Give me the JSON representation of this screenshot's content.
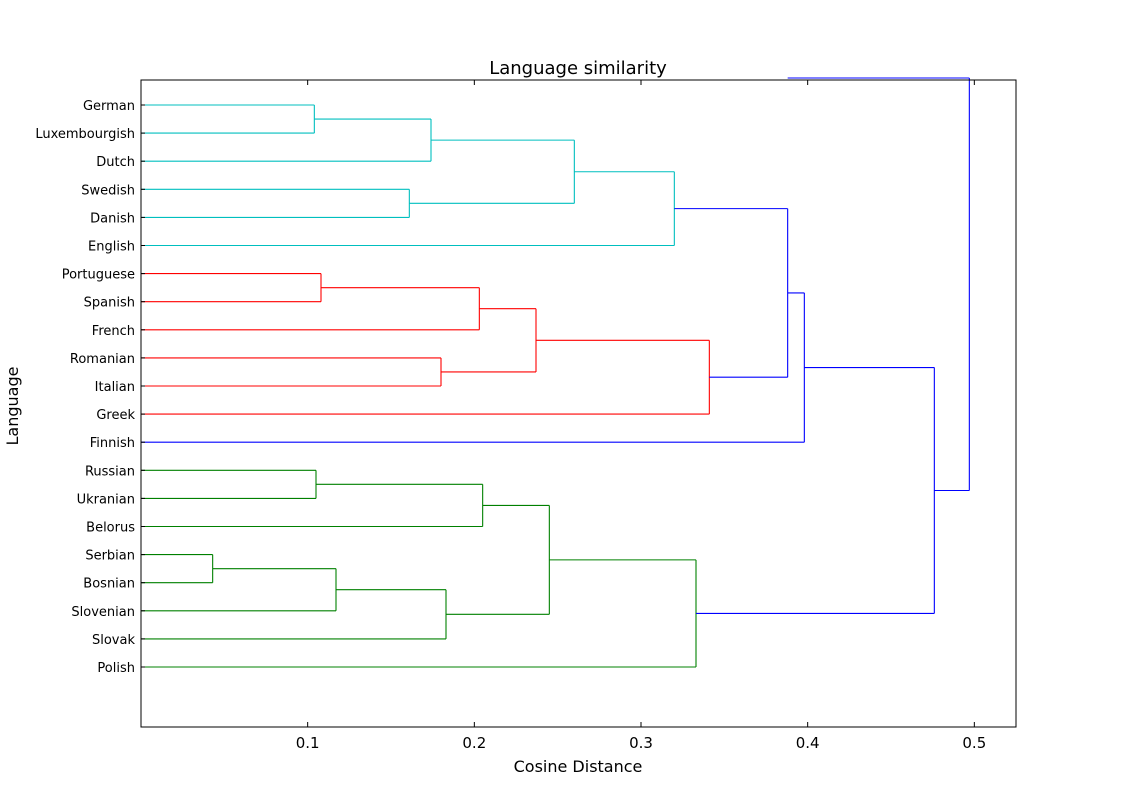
{
  "chart_data": {
    "type": "dendrogram",
    "orientation": "horizontal",
    "title": "Language similarity",
    "xlabel": "Cosine Distance",
    "ylabel": "Language",
    "xlim": [
      0.0,
      0.525
    ],
    "xticks": [
      0.1,
      0.2,
      0.3,
      0.4,
      0.5
    ],
    "xtick_labels": [
      "0.1",
      "0.2",
      "0.3",
      "0.4",
      "0.5"
    ],
    "grid": false,
    "colors": {
      "germanic_cluster": "#00bfbf",
      "romance_cluster": "#ff0000",
      "slavic_cluster": "#008000",
      "above_threshold": "#0000ff",
      "axes": "#000000"
    },
    "leaves": [
      "German",
      "Luxembourgish",
      "Dutch",
      "Swedish",
      "Danish",
      "English",
      "Portuguese",
      "Spanish",
      "French",
      "Romanian",
      "Italian",
      "Greek",
      "Finnish",
      "Russian",
      "Ukranian",
      "Belorus",
      "Serbian",
      "Bosnian",
      "Slovenian",
      "Slovak",
      "Polish"
    ],
    "merges": [
      {
        "id": "g1",
        "children": [
          "German",
          "Luxembourgish"
        ],
        "distance": 0.104,
        "color": "germanic_cluster"
      },
      {
        "id": "g2",
        "children": [
          "g1",
          "Dutch"
        ],
        "distance": 0.174,
        "color": "germanic_cluster"
      },
      {
        "id": "g3",
        "children": [
          "Swedish",
          "Danish"
        ],
        "distance": 0.161,
        "color": "germanic_cluster"
      },
      {
        "id": "g4",
        "children": [
          "g2",
          "g3"
        ],
        "distance": 0.26,
        "color": "germanic_cluster"
      },
      {
        "id": "g5",
        "children": [
          "g4",
          "English"
        ],
        "distance": 0.32,
        "color": "germanic_cluster"
      },
      {
        "id": "r1",
        "children": [
          "Portuguese",
          "Spanish"
        ],
        "distance": 0.108,
        "color": "romance_cluster"
      },
      {
        "id": "r2",
        "children": [
          "r1",
          "French"
        ],
        "distance": 0.203,
        "color": "romance_cluster"
      },
      {
        "id": "r3",
        "children": [
          "Romanian",
          "Italian"
        ],
        "distance": 0.18,
        "color": "romance_cluster"
      },
      {
        "id": "r4",
        "children": [
          "r2",
          "r3"
        ],
        "distance": 0.237,
        "color": "romance_cluster"
      },
      {
        "id": "r5",
        "children": [
          "r4",
          "Greek"
        ],
        "distance": 0.341,
        "color": "romance_cluster"
      },
      {
        "id": "s1",
        "children": [
          "Russian",
          "Ukranian"
        ],
        "distance": 0.105,
        "color": "slavic_cluster"
      },
      {
        "id": "s2",
        "children": [
          "s1",
          "Belorus"
        ],
        "distance": 0.205,
        "color": "slavic_cluster"
      },
      {
        "id": "s3",
        "children": [
          "Serbian",
          "Bosnian"
        ],
        "distance": 0.043,
        "color": "slavic_cluster"
      },
      {
        "id": "s4",
        "children": [
          "s3",
          "Slovenian"
        ],
        "distance": 0.117,
        "color": "slavic_cluster"
      },
      {
        "id": "s5",
        "children": [
          "s4",
          "Slovak"
        ],
        "distance": 0.183,
        "color": "slavic_cluster"
      },
      {
        "id": "s6",
        "children": [
          "s2",
          "s5"
        ],
        "distance": 0.245,
        "color": "slavic_cluster"
      },
      {
        "id": "s7",
        "children": [
          "s6",
          "Polish"
        ],
        "distance": 0.333,
        "color": "slavic_cluster"
      },
      {
        "id": "b1",
        "children": [
          "g5",
          "r5"
        ],
        "distance": 0.388,
        "color": "above_threshold"
      },
      {
        "id": "b2",
        "children": [
          "b1",
          "Finnish"
        ],
        "distance": 0.398,
        "color": "above_threshold"
      },
      {
        "id": "b3",
        "children": [
          "b2",
          "s7"
        ],
        "distance": 0.476,
        "color": "above_threshold"
      },
      {
        "id": "b4",
        "children": [
          "b3",
          "root_partner"
        ],
        "distance": 0.497,
        "color": "above_threshold"
      }
    ],
    "root_partner_note": "",
    "leaf_colors": {
      "Finnish": "above_threshold"
    }
  }
}
